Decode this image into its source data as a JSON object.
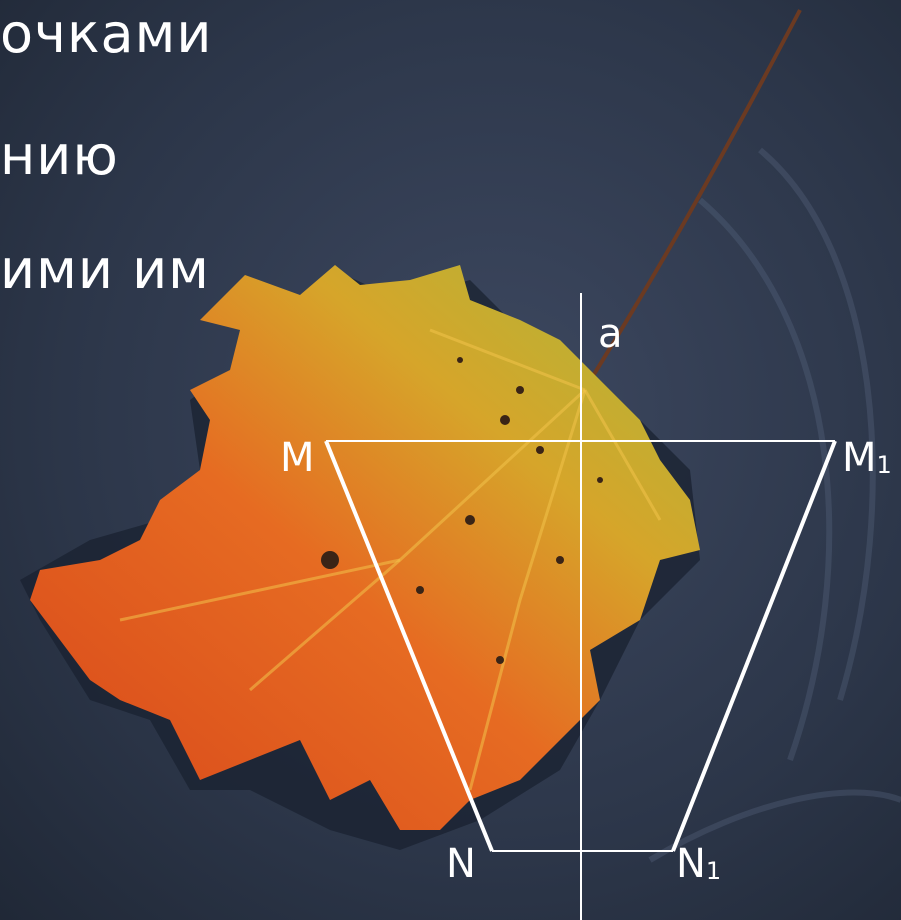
{
  "slide": {
    "text_lines": [
      "очками",
      "нию",
      "ими им"
    ]
  },
  "figure": {
    "axis_label": "a",
    "points": {
      "M": {
        "main": "M",
        "sub": ""
      },
      "M1": {
        "main": "M",
        "sub": "1"
      },
      "N": {
        "main": "N",
        "sub": ""
      },
      "N1": {
        "main": "N",
        "sub": "1"
      }
    }
  },
  "colors": {
    "water": "#2f3a4d",
    "leaf_orange": "#e0611d",
    "leaf_yellow": "#d8b82a",
    "leaf_green": "#9db43a",
    "lines": "#ffffff"
  }
}
